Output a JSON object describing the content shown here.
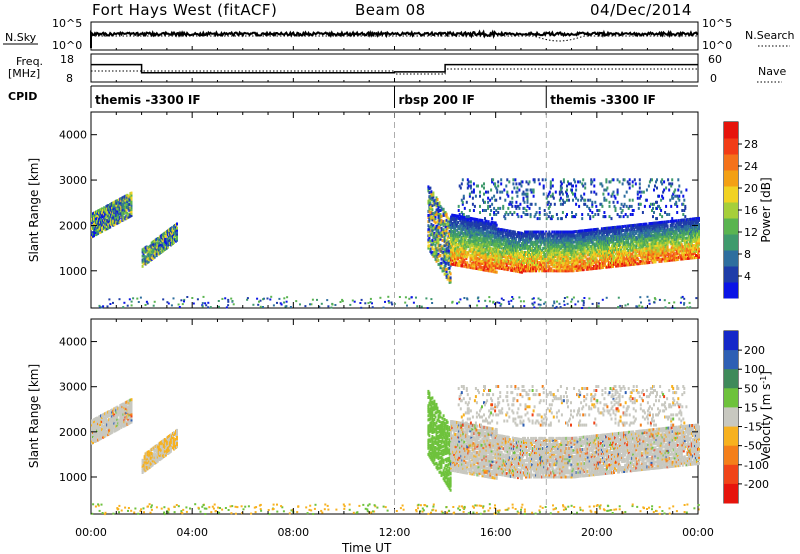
{
  "header": {
    "radar": "Fort Hays West (fitACF)",
    "beam": "Beam 08",
    "date": "04/Dec/2014"
  },
  "chart_data": [
    {
      "type": "line",
      "panel": "noise",
      "left_label": "N.Sky",
      "right_label": "N.Search",
      "left_ticks": [
        "10^5",
        "10^0"
      ],
      "right_ticks": [
        "10^5",
        "10^0"
      ],
      "xlim": [
        0,
        24
      ]
    },
    {
      "type": "line",
      "panel": "frequency",
      "left_label_1": "Freq.",
      "left_label_2": "[MHz]",
      "right_label": "Nave",
      "left_ticks": [
        18,
        8
      ],
      "right_ticks": [
        60,
        0
      ],
      "ylim": [
        8,
        18
      ],
      "freq_steps": [
        {
          "t0": 0.0,
          "t1": 2.0,
          "value": 14.2
        },
        {
          "t0": 2.0,
          "t1": 12.0,
          "value": 11.3
        },
        {
          "t0": 12.0,
          "t1": 14.0,
          "value": 11.6
        },
        {
          "t0": 14.0,
          "t1": 24.0,
          "value": 14.2
        }
      ]
    },
    {
      "type": "table",
      "panel": "cpid",
      "label": "CPID",
      "segments": [
        {
          "start": 0.0,
          "label": "themis -3300 IF"
        },
        {
          "start": 12.0,
          "label": "rbsp 200 IF"
        },
        {
          "start": 18.0,
          "label": "themis -3300 IF"
        }
      ]
    },
    {
      "type": "heatmap",
      "panel": "power",
      "ylabel": "Slant Range [km]",
      "yticks": [
        1000,
        2000,
        3000,
        4000
      ],
      "ylim": [
        180,
        4500
      ],
      "xlim": [
        0,
        24
      ],
      "colorbar_label": "Power [dB]",
      "colorbar_ticks": [
        4,
        8,
        12,
        16,
        20,
        24,
        28
      ],
      "colorbar_range": [
        0,
        32
      ],
      "colors": [
        "#0a14e6",
        "#1e3ca8",
        "#2e6e9e",
        "#3f9a6c",
        "#5ab450",
        "#a6cf3a",
        "#f1d223",
        "#f3a014",
        "#f4721a",
        "#f23c16",
        "#e6140c"
      ]
    },
    {
      "type": "heatmap",
      "panel": "velocity",
      "ylabel": "Slant Range [km]",
      "yticks": [
        1000,
        2000,
        3000,
        4000
      ],
      "ylim": [
        180,
        4500
      ],
      "xlim": [
        0,
        24
      ],
      "colorbar_label": "Velocity [m s",
      "colorbar_label_sup": "-1",
      "colorbar_label_end": "]",
      "colorbar_ticks": [
        "200",
        "100",
        "50",
        "15",
        "-15",
        "-50",
        "-100",
        "-200"
      ],
      "colors": [
        "#1428c8",
        "#2e5fb4",
        "#3f8a5a",
        "#6ec23c",
        "#c8c8c0",
        "#f7b11f",
        "#f47f1a",
        "#f04418",
        "#e6140c"
      ]
    }
  ],
  "xaxis": {
    "ticks": [
      "00:00",
      "04:00",
      "08:00",
      "12:00",
      "16:00",
      "20:00",
      "00:00"
    ],
    "label": "Time UT"
  }
}
